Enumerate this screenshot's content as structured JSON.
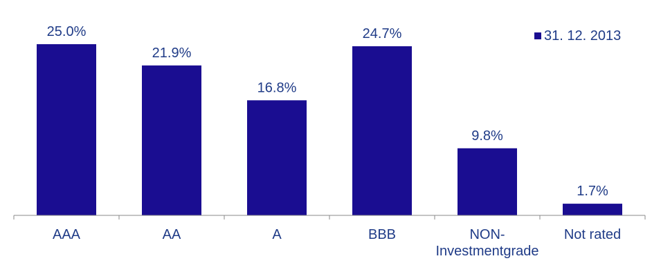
{
  "chart_data": {
    "type": "bar",
    "categories": [
      "AAA",
      "AA",
      "A",
      "BBB",
      "NON-\nInvestmentgrade",
      "Not rated"
    ],
    "series": [
      {
        "name": "31. 12. 2013",
        "values": [
          25.0,
          21.9,
          16.8,
          24.7,
          9.8,
          1.7
        ],
        "labels": [
          "25.0%",
          "21.9%",
          "16.8%",
          "24.7%",
          "9.8%",
          "1.7%"
        ]
      }
    ],
    "bar_color": "#1a0d91",
    "text_color": "#1f3b87",
    "axis_color": "#888888",
    "legend_position": "top-right",
    "grid": false,
    "ylim": [
      0,
      25
    ]
  }
}
